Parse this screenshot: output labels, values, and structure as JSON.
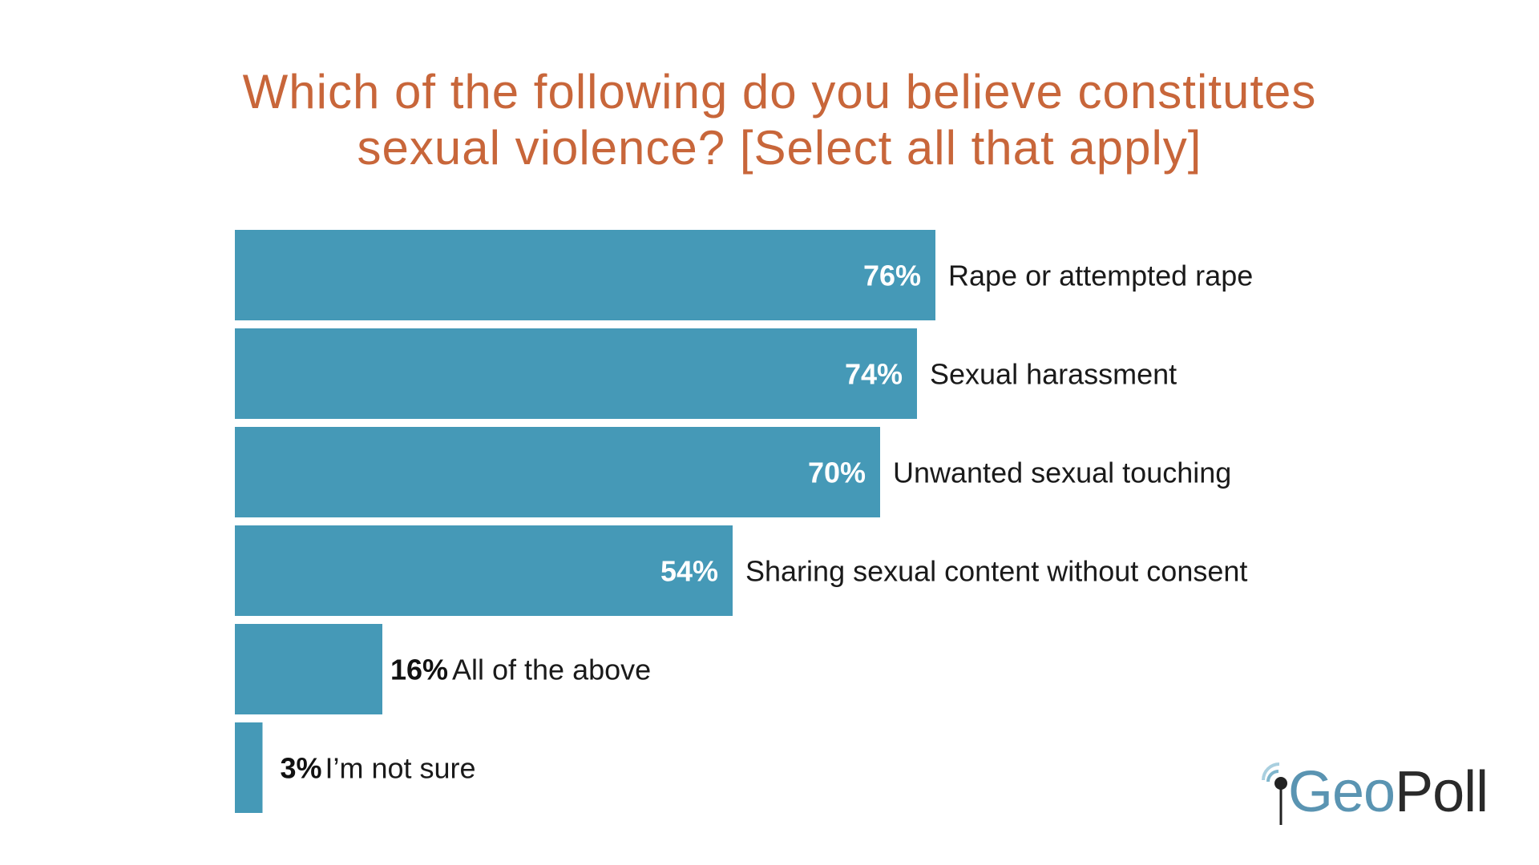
{
  "chart_data": {
    "type": "bar",
    "orientation": "horizontal",
    "title": "Which of the following do you believe constitutes sexual violence? [Select all that apply]",
    "title_lines": [
      "Which of the following do you believe constitutes",
      "sexual violence? [Select all that apply]"
    ],
    "categories": [
      "Rape or attempted rape",
      "Sexual harassment",
      "Unwanted sexual touching",
      "Sharing sexual content without consent",
      "All of the above",
      "I’m not sure"
    ],
    "values": [
      76,
      74,
      70,
      54,
      16,
      3
    ],
    "value_labels": [
      "76%",
      "74%",
      "70%",
      "54%",
      "16%",
      "3%"
    ],
    "unit": "%",
    "xlim": [
      0,
      100
    ],
    "grid": false,
    "bar_color": "#4599b7",
    "title_color": "#c8663a"
  },
  "logo": {
    "text_geo": "Geo",
    "text_poll": "Poll",
    "geo_color": "#5a94b2",
    "poll_color": "#2a2a2a"
  }
}
